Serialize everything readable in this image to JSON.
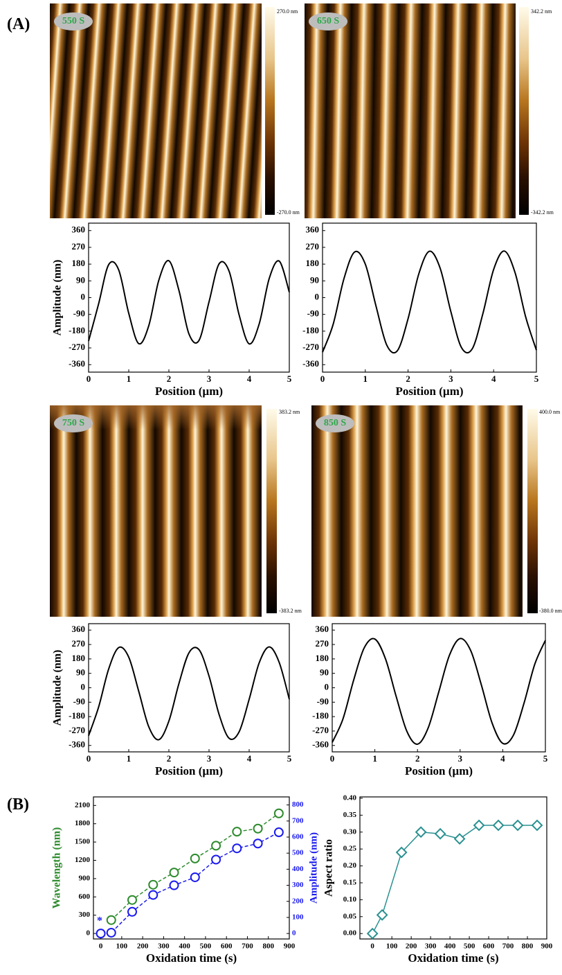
{
  "labels": {
    "panel_a": "(A)",
    "panel_b": "(B)"
  },
  "afm_images": [
    {
      "tag": "550 S",
      "max": "270.0 nm",
      "min": "-270.0 nm"
    },
    {
      "tag": "650 S",
      "max": "342.2 nm",
      "min": "-342.2 nm"
    },
    {
      "tag": "750 S",
      "max": "383.2 nm",
      "min": "-383.2 nm"
    },
    {
      "tag": "850 S",
      "max": "400.0 nm",
      "min": "-380.0 nm"
    }
  ],
  "chart_data": [
    {
      "type": "line",
      "xlabel": "Position (µm)",
      "ylabel": "Amplitude (nm)",
      "x": [
        0,
        0.25,
        0.5,
        0.75,
        1,
        1.25,
        1.5,
        1.75,
        2,
        2.25,
        2.5,
        2.75,
        3,
        3.25,
        3.5,
        3.75,
        4,
        4.25,
        4.5,
        4.75,
        5
      ],
      "series": [
        {
          "color": "#000000",
          "values": [
            -233,
            -33,
            177,
            149,
            -84,
            -247,
            -150,
            94,
            198,
            39,
            -195,
            -230,
            -23,
            181,
            142,
            -93,
            -248,
            -141,
            103,
            196,
            29
          ]
        }
      ],
      "xlim": [
        0,
        5
      ],
      "ylim": [
        -400,
        400
      ],
      "xticks": [
        0,
        1,
        2,
        3,
        4,
        5
      ],
      "yticks": [
        360,
        270,
        180,
        90,
        0,
        -90,
        -180,
        -270,
        -360
      ]
    },
    {
      "type": "line",
      "xlabel": "Position (µm)",
      "x": [
        0,
        0.25,
        0.5,
        0.75,
        1,
        1.25,
        1.5,
        1.75,
        2,
        2.25,
        2.5,
        2.75,
        3,
        3.25,
        3.5,
        3.75,
        4,
        4.25,
        4.5,
        4.75,
        5
      ],
      "series": [
        {
          "color": "#000000",
          "values": [
            -293,
            -142,
            101,
            245,
            180,
            -45,
            -254,
            -285,
            -113,
            127,
            249,
            158,
            -75,
            -269,
            -275,
            -85,
            151,
            250,
            135,
            -104,
            -282
          ]
        }
      ],
      "xlim": [
        0,
        5
      ],
      "ylim": [
        -400,
        400
      ],
      "xticks": [
        0,
        1,
        2,
        3,
        4,
        5
      ],
      "yticks": [
        360,
        270,
        180,
        90,
        0,
        -90,
        -180,
        -270,
        -360
      ]
    },
    {
      "type": "line",
      "xlabel": "Position (µm)",
      "ylabel": "Amplitude (nm)",
      "x": [
        0,
        0.25,
        0.5,
        0.75,
        1,
        1.25,
        1.5,
        1.75,
        2,
        2.25,
        2.5,
        2.75,
        3,
        3.25,
        3.5,
        3.75,
        4,
        4.25,
        4.5,
        4.75,
        5
      ],
      "series": [
        {
          "color": "#000000",
          "values": [
            -299,
            -120,
            117,
            251,
            191,
            -23,
            -244,
            -324,
            -208,
            26,
            218,
            238,
            73,
            -166,
            -315,
            -275,
            -72,
            156,
            255,
            157,
            -72
          ]
        }
      ],
      "xlim": [
        0,
        5
      ],
      "ylim": [
        -400,
        400
      ],
      "xticks": [
        0,
        1,
        2,
        3,
        4,
        5
      ],
      "yticks": [
        360,
        270,
        180,
        90,
        0,
        -90,
        -180,
        -270,
        -360
      ]
    },
    {
      "type": "line",
      "xlabel": "Position (µm)",
      "x": [
        0,
        0.25,
        0.5,
        0.75,
        1,
        1.25,
        1.5,
        1.75,
        2,
        2.25,
        2.5,
        2.75,
        3,
        3.25,
        3.5,
        3.75,
        4,
        4.25,
        4.5,
        4.75,
        5
      ],
      "series": [
        {
          "color": "#000000",
          "values": [
            -341,
            -196,
            45,
            249,
            304,
            180,
            -54,
            -271,
            -352,
            -251,
            -25,
            203,
            307,
            231,
            16,
            -220,
            -347,
            -296,
            -95,
            146,
            296
          ]
        }
      ],
      "xlim": [
        0,
        5
      ],
      "ylim": [
        -400,
        400
      ],
      "xticks": [
        0,
        1,
        2,
        3,
        4,
        5
      ],
      "yticks": [
        360,
        270,
        180,
        90,
        0,
        -90,
        -180,
        -270,
        -360
      ]
    },
    {
      "type": "line",
      "xlabel": "Oxidation time (s)",
      "ylabel": "Wavelength (nm)",
      "y2label": "Amplitude (nm)",
      "annotation": "*",
      "series": [
        {
          "color": "#2e8b2e",
          "marker": "circle",
          "linestyle": "dashed",
          "x": [
            50,
            150,
            250,
            350,
            450,
            550,
            650,
            750,
            850
          ],
          "values": [
            220,
            550,
            800,
            1000,
            1230,
            1440,
            1670,
            1720,
            1970
          ]
        },
        {
          "color": "#1a1aee",
          "marker": "circle",
          "linestyle": "dashed",
          "axis": "y2",
          "x": [
            0,
            50,
            150,
            250,
            350,
            450,
            550,
            650,
            750,
            850
          ],
          "values": [
            0,
            5,
            135,
            240,
            300,
            350,
            460,
            530,
            560,
            630
          ]
        }
      ],
      "xlim": [
        -35,
        900
      ],
      "ylim": [
        -90,
        2240
      ],
      "y2lim": [
        -34,
        850
      ],
      "xticks": [
        0,
        100,
        200,
        300,
        400,
        500,
        600,
        700,
        800,
        900
      ],
      "yticks": [
        0,
        300,
        600,
        900,
        1200,
        1500,
        1800,
        2100
      ],
      "y2ticks": [
        0,
        100,
        200,
        300,
        400,
        500,
        600,
        700,
        800
      ]
    },
    {
      "type": "line",
      "xlabel": "Oxidation time (s)",
      "ylabel": "Aspect ratio",
      "series": [
        {
          "color": "#2a9090",
          "marker": "diamond",
          "x": [
            0,
            50,
            150,
            250,
            350,
            450,
            550,
            650,
            750,
            850
          ],
          "values": [
            0,
            0.055,
            0.24,
            0.3,
            0.295,
            0.28,
            0.32,
            0.32,
            0.32,
            0.32
          ]
        }
      ],
      "xlim": [
        -65,
        900
      ],
      "ylim": [
        -0.016,
        0.404
      ],
      "xticks": [
        0,
        100,
        200,
        300,
        400,
        500,
        600,
        700,
        800,
        900
      ],
      "yticks": [
        {
          "value": 0,
          "label": "0.00"
        },
        {
          "value": 0.05,
          "label": "0.05"
        },
        {
          "value": 0.1,
          "label": "0.10"
        },
        {
          "value": 0.15,
          "label": "0.15"
        },
        {
          "value": 0.2,
          "label": "0.20"
        },
        {
          "value": 0.25,
          "label": "0.25"
        },
        {
          "value": 0.3,
          "label": "0.30"
        },
        {
          "value": 0.35,
          "label": "0.35"
        },
        {
          "value": 0.4,
          "label": "0.40"
        }
      ]
    }
  ]
}
